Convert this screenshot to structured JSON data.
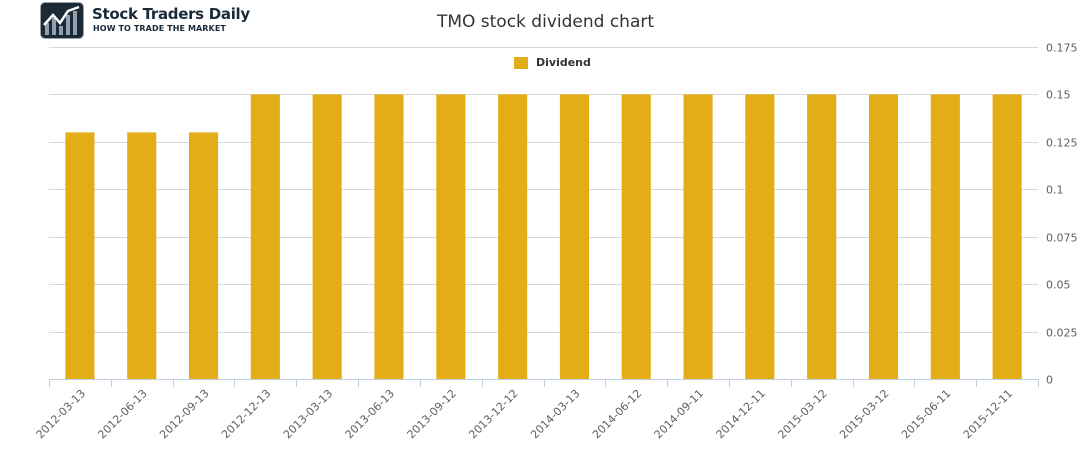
{
  "logo": {
    "name": "Stock Traders Daily",
    "tagline": "HOW TO TRADE THE MARKET"
  },
  "chart_data": {
    "type": "bar",
    "title": "TMO stock dividend chart",
    "xlabel": "",
    "ylabel": "",
    "categories": [
      "2012-03-13",
      "2012-06-13",
      "2012-09-13",
      "2012-12-13",
      "2013-03-13",
      "2013-06-13",
      "2013-09-12",
      "2013-12-12",
      "2014-03-13",
      "2014-06-12",
      "2014-09-11",
      "2014-12-11",
      "2015-03-12",
      "2015-03-12",
      "2015-06-11",
      "2015-12-11"
    ],
    "series": [
      {
        "name": "Dividend",
        "values": [
          0.13,
          0.13,
          0.13,
          0.15,
          0.15,
          0.15,
          0.15,
          0.15,
          0.15,
          0.15,
          0.15,
          0.15,
          0.15,
          0.15,
          0.15,
          0.15
        ]
      }
    ],
    "ylim": [
      0,
      0.175
    ],
    "yticks": [
      "0",
      "0.025",
      "0.05",
      "0.075",
      "0.1",
      "0.125",
      "0.15",
      "0.175"
    ],
    "ytick_values": [
      0,
      0.025,
      0.05,
      0.075,
      0.1,
      0.125,
      0.15,
      0.175
    ],
    "y_axis_side": "right",
    "grid": true,
    "legend_position": "top-center",
    "bar_color": "#e2ad17",
    "grid_color": "#d8d8d8",
    "axis_color": "#c0d0e0",
    "text_color": "#606060"
  }
}
